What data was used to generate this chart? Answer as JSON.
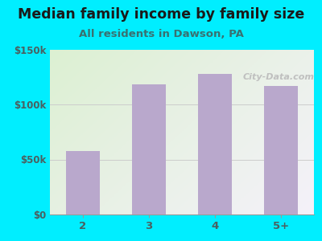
{
  "title": "Median family income by family size",
  "subtitle": "All residents in Dawson, PA",
  "categories": [
    "2",
    "3",
    "4",
    "5+"
  ],
  "values": [
    58000,
    118000,
    128000,
    117000
  ],
  "bar_color": "#b9a8cc",
  "ylim": [
    0,
    150000
  ],
  "ytick_labels": [
    "$0",
    "$50k",
    "$100k",
    "$150k"
  ],
  "ytick_values": [
    0,
    50000,
    100000,
    150000
  ],
  "bg_outer": "#00eeff",
  "title_color": "#1a1a1a",
  "subtitle_color": "#3a7070",
  "tick_color": "#4a6060",
  "watermark": "City-Data.com",
  "title_fontsize": 12.5,
  "subtitle_fontsize": 9.5,
  "plot_bg_colors": [
    "#e8f5e0",
    "#f5f0f8"
  ],
  "grid_color": "#cccccc"
}
